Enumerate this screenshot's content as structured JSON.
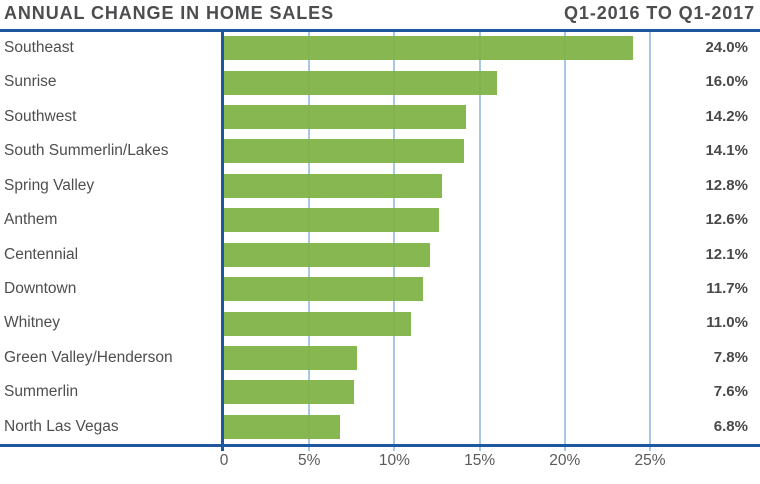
{
  "header": {
    "title": "ANNUAL CHANGE IN HOME SALES",
    "period": "Q1-2016 TO Q1-2017"
  },
  "chart_data": {
    "type": "bar",
    "orientation": "horizontal",
    "title": "ANNUAL CHANGE IN HOME SALES",
    "subtitle": "Q1-2016 TO Q1-2017",
    "categories": [
      "Southeast",
      "Sunrise",
      "Southwest",
      "South Summerlin/Lakes",
      "Spring Valley",
      "Anthem",
      "Centennial",
      "Downtown",
      "Whitney",
      "Green Valley/Henderson",
      "Summerlin",
      "North Las Vegas"
    ],
    "values": [
      24.0,
      16.0,
      14.2,
      14.1,
      12.8,
      12.6,
      12.1,
      11.7,
      11.0,
      7.8,
      7.6,
      6.8
    ],
    "value_labels": [
      "24.0%",
      "16.0%",
      "14.2%",
      "14.1%",
      "12.8%",
      "12.6%",
      "12.1%",
      "11.7%",
      "11.0%",
      "7.8%",
      "7.6%",
      "6.8%"
    ],
    "xlabel": "",
    "ylabel": "",
    "x_axis": {
      "ticks": [
        0,
        5,
        10,
        15,
        20,
        25
      ],
      "tick_labels": [
        "0",
        "5%",
        "10%",
        "15%",
        "20%",
        "25%"
      ],
      "min": 0,
      "max": 31.5
    },
    "grid": true,
    "legend": false,
    "colors": {
      "bar": "#7eb345",
      "axis_line": "#1e57a0",
      "gridline": "#a9c6e4",
      "title_text": "#4c4d4f",
      "category_text": "#4d4e50",
      "value_text": "#48494b",
      "tick_text": "#595a5c"
    }
  }
}
